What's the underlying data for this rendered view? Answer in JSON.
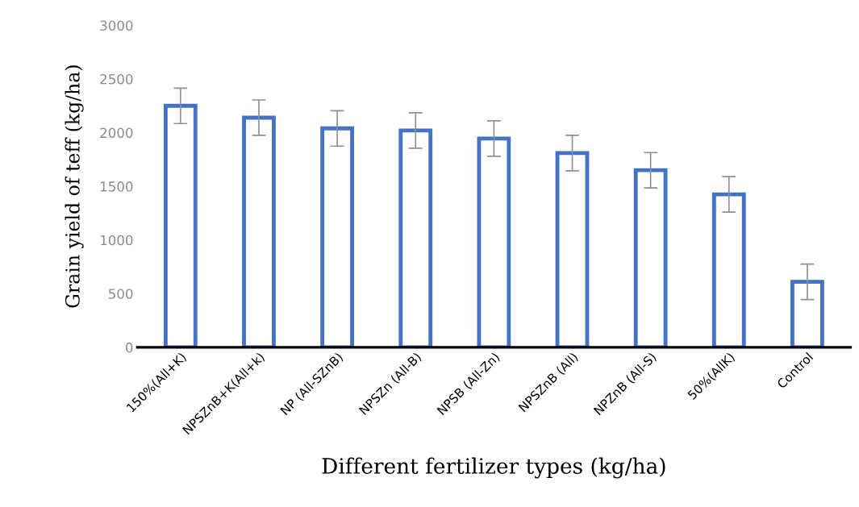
{
  "chart_data": {
    "type": "bar",
    "xlabel": "Different fertilizer types (kg/ha)",
    "ylabel": "Grain yield of teff (kg/ha)",
    "categories": [
      "150%(All+K)",
      "NPSZnB+K(All+k)",
      "NP (All-SZnB)",
      "NPSZn (All-B)",
      "NPSB (All-Zn)",
      "NPSZnB (All)",
      "NPZnB (All-S)",
      "50%(AllK)",
      "Control"
    ],
    "values": [
      2250,
      2140,
      2040,
      2020,
      1945,
      1810,
      1650,
      1425,
      610
    ],
    "errors": [
      165,
      165,
      165,
      165,
      165,
      165,
      165,
      165,
      165
    ],
    "color": "#4472c4",
    "ylim": [
      0,
      3000
    ],
    "yticks": [
      0,
      500,
      1000,
      1500,
      2000,
      2500,
      3000
    ],
    "grid": false
  }
}
